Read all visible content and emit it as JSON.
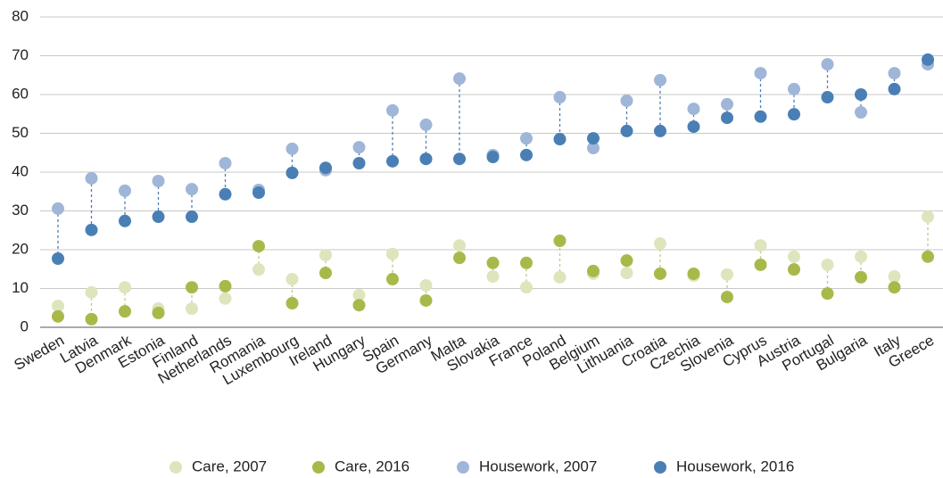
{
  "chart_data": {
    "type": "dot",
    "categories": [
      "Sweden",
      "Latvia",
      "Denmark",
      "Estonia",
      "Finland",
      "Netherlands",
      "Romania",
      "Luxembourg",
      "Ireland",
      "Hungary",
      "Spain",
      "Germany",
      "Malta",
      "Slovakia",
      "France",
      "Poland",
      "Belgium",
      "Lithuania",
      "Croatia",
      "Czechia",
      "Slovenia",
      "Cyprus",
      "Austria",
      "Portugal",
      "Bulgaria",
      "Italy",
      "Greece"
    ],
    "series": [
      {
        "name": "Care, 2007",
        "color": "#dde5bd",
        "values": [
          5.5,
          9,
          10.3,
          4.8,
          4.8,
          7.4,
          14.9,
          12.4,
          18.6,
          8.3,
          18.9,
          10.8,
          21.1,
          13.1,
          10.3,
          12.9,
          13.8,
          14.0,
          21.6,
          13.3,
          13.6,
          21.1,
          18.2,
          16.1,
          18.2,
          13.1,
          28.5
        ]
      },
      {
        "name": "Care, 2016",
        "color": "#a8b94a",
        "values": [
          2.8,
          2.1,
          4.1,
          3.7,
          10.3,
          10.6,
          20.9,
          6.2,
          14.0,
          5.7,
          12.4,
          6.9,
          17.9,
          16.6,
          16.6,
          22.3,
          14.5,
          17.2,
          13.8,
          13.8,
          7.8,
          16.1,
          14.9,
          8.7,
          12.9,
          10.3,
          18.2
        ]
      },
      {
        "name": "Housework, 2007",
        "color": "#9fb6d8",
        "values": [
          30.6,
          38.4,
          35.2,
          37.7,
          35.6,
          42.3,
          35.4,
          46,
          40.5,
          46.4,
          55.9,
          52.2,
          64.1,
          44.4,
          48.7,
          59.3,
          46.2,
          58.4,
          63.7,
          56.3,
          57.5,
          65.5,
          61.4,
          67.8,
          55.4,
          65.5,
          67.8
        ]
      },
      {
        "name": "Housework, 2016",
        "color": "#4a7fb5",
        "values": [
          17.7,
          25.1,
          27.4,
          28.5,
          28.5,
          34.3,
          34.7,
          39.8,
          41.1,
          42.3,
          42.8,
          43.4,
          43.4,
          43.9,
          44.4,
          48.5,
          48.7,
          50.6,
          50.6,
          51.7,
          54.0,
          54.3,
          54.9,
          59.3,
          60.0,
          61.4,
          69.0
        ]
      }
    ],
    "ylim": [
      0,
      80
    ],
    "yticks": [
      0,
      10,
      20,
      30,
      40,
      50,
      60,
      70,
      80
    ],
    "grid": true
  }
}
